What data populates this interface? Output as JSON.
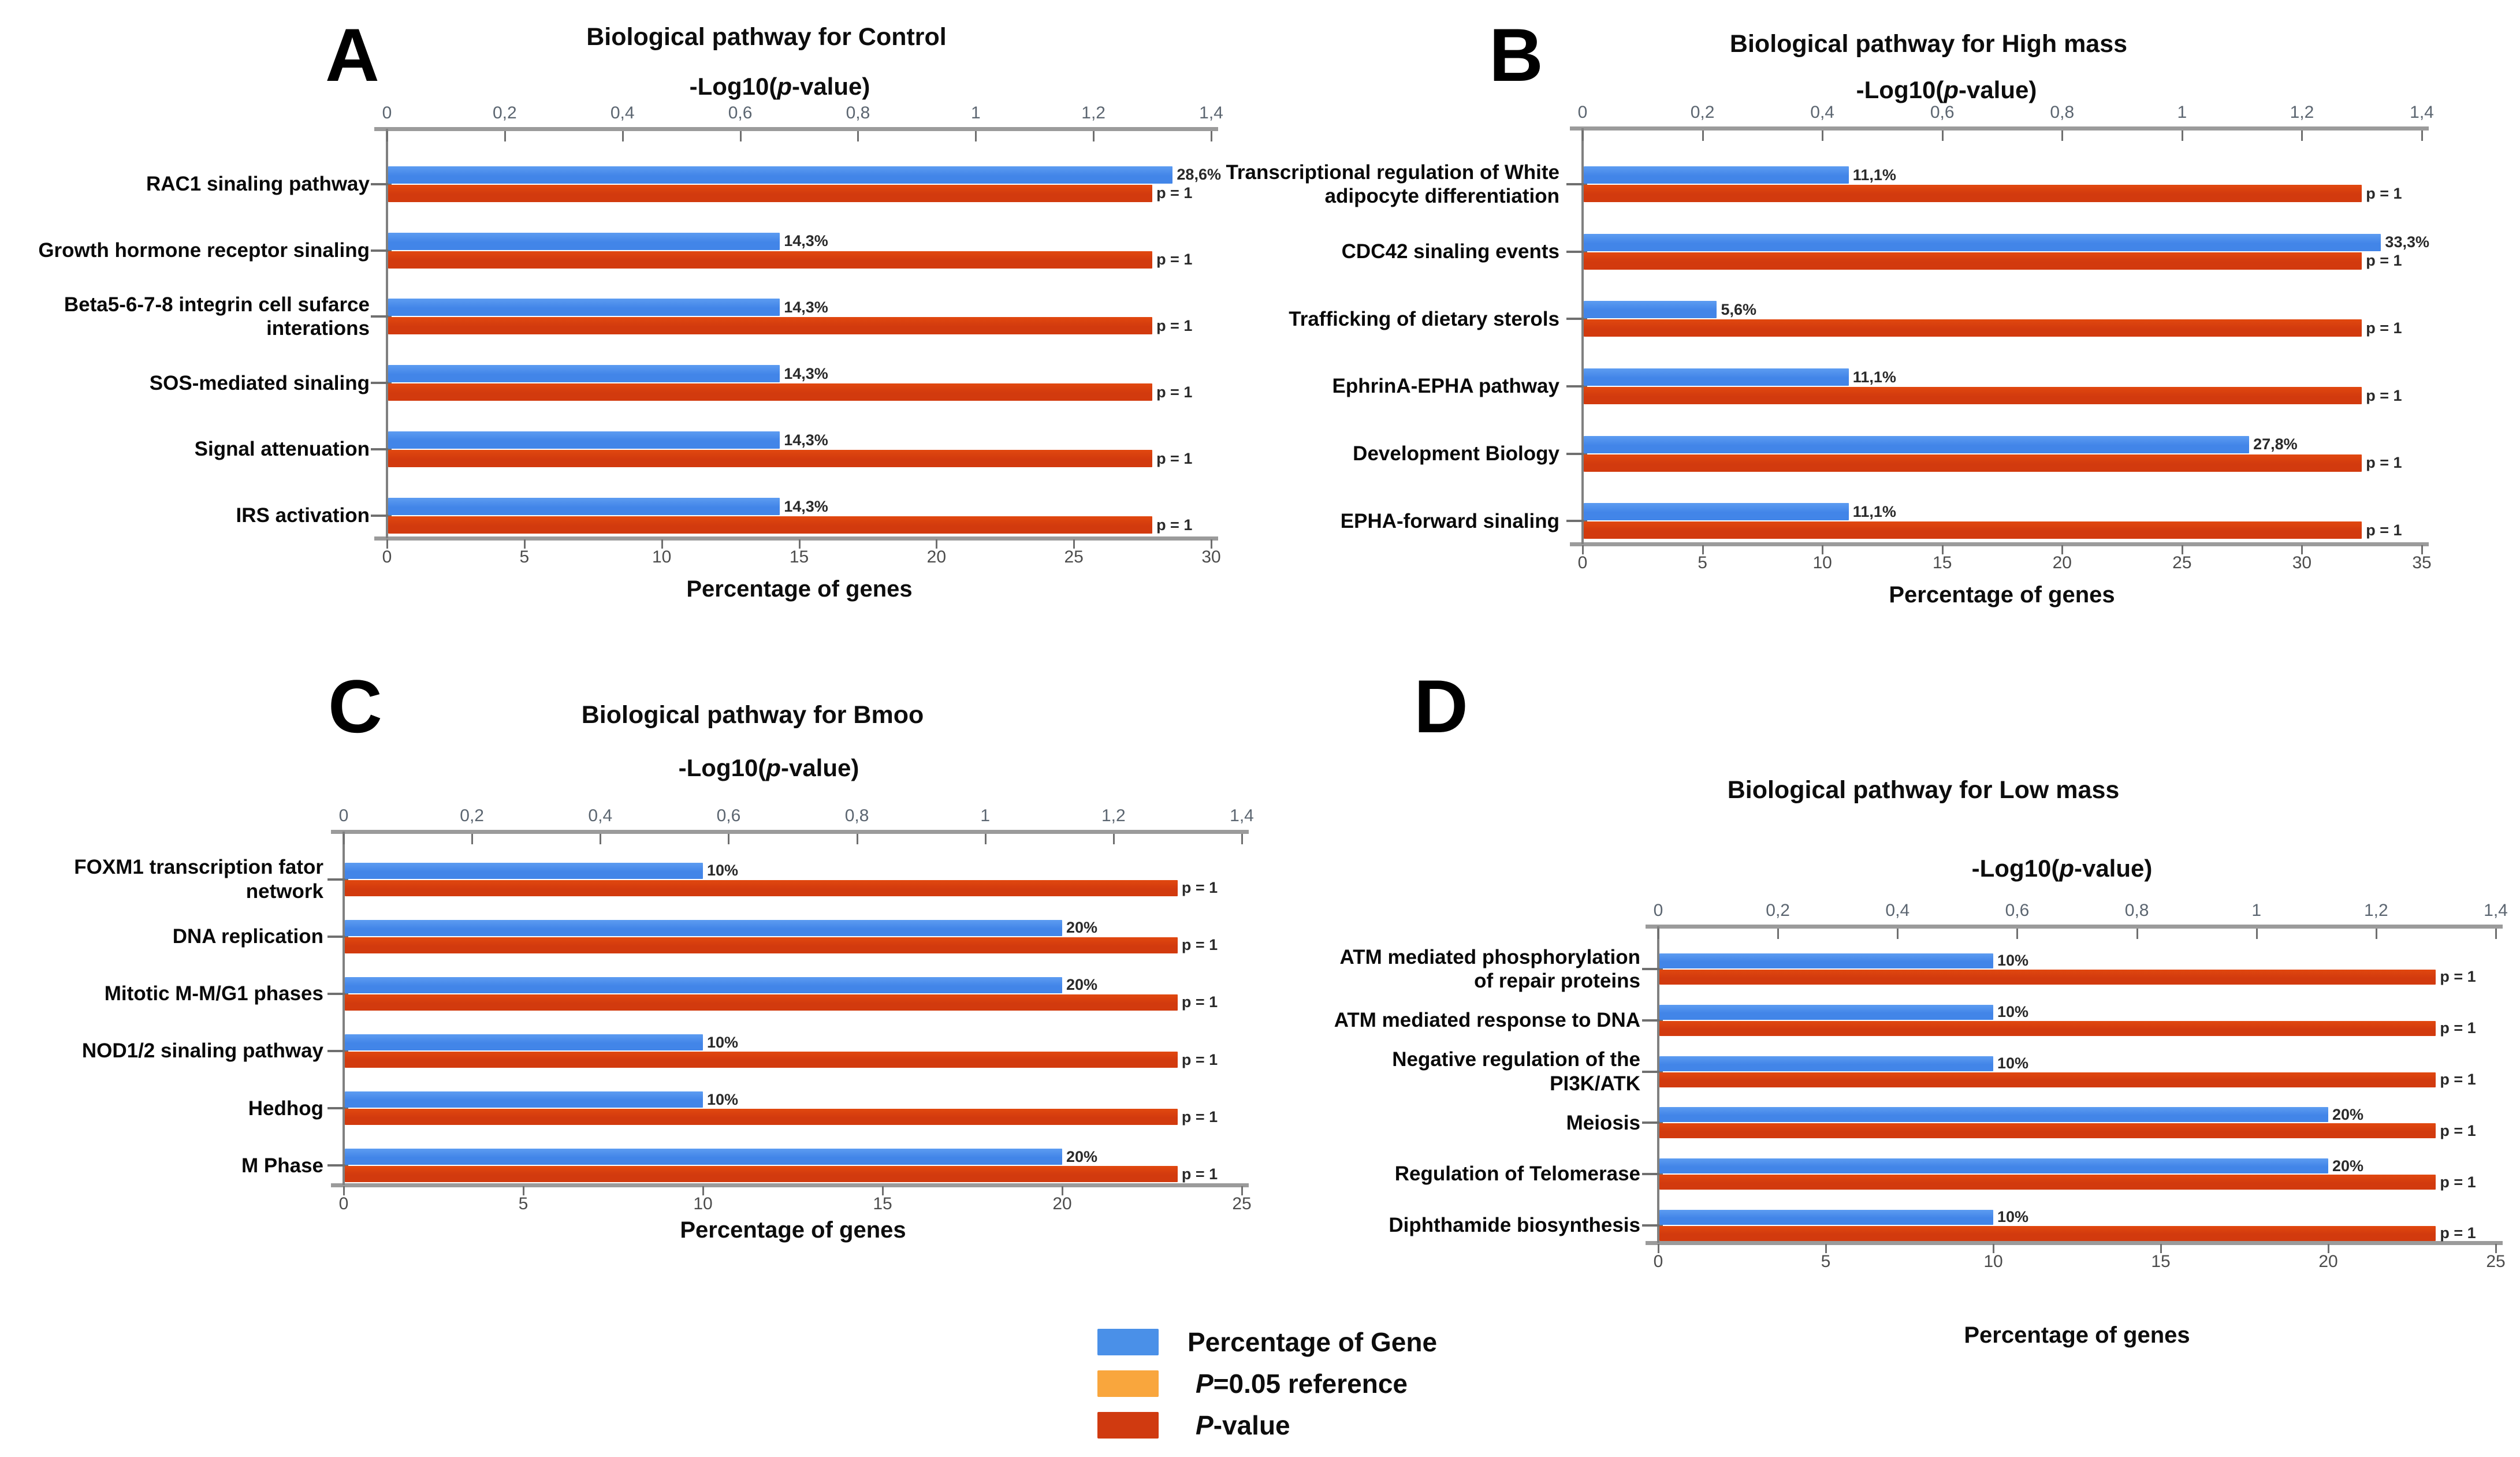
{
  "figure": {
    "background": "#ffffff"
  },
  "colors": {
    "gene_bar": "#4285e8",
    "gene_bar_light": "#5d9cf1",
    "pvalue_bar": "#d23a0e",
    "pvalue_bar_light": "#e1480f",
    "gene_swatch": "#4a90e8",
    "reference_swatch": "#f9a63d",
    "pvalue_swatch": "#d03a10",
    "axis_line": "#9b9b9b",
    "y_axis_line": "#808080",
    "tick_mark": "#6f6f6f",
    "top_tick_text": "#5b6570",
    "bottom_tick_text": "#4c4c4c",
    "value_text": "#2a2a2a"
  },
  "panels": [
    {
      "letter": "A",
      "title": "Biological pathway for Control",
      "subtitle": {
        "pre": "-Log10(",
        "it": "p",
        "post": "-value)"
      },
      "top_axis": {
        "max": 1.4,
        "ticks": [
          "0",
          "0,2",
          "0,4",
          "0,6",
          "0,8",
          "1",
          "1,2",
          "1,4"
        ]
      },
      "bottom_axis": {
        "max": 30,
        "ticks": [
          "0",
          "5",
          "10",
          "15",
          "20",
          "25",
          "30"
        ],
        "title": "Percentage of genes"
      },
      "pvalue_bar": {
        "neglog10": 1.3,
        "label": "p = 1"
      },
      "rows": [
        {
          "label": "RAC1 sinaling pathway",
          "pct": 28.6,
          "pct_label": "28,6%"
        },
        {
          "label": "Growth hormone receptor sinaling",
          "pct": 14.3,
          "pct_label": "14,3%"
        },
        {
          "label": "Beta5-6-7-8 integrin cell sufarce interations",
          "pct": 14.3,
          "pct_label": "14,3%"
        },
        {
          "label": "SOS-mediated sinaling",
          "pct": 14.3,
          "pct_label": "14,3%"
        },
        {
          "label": "Signal attenuation",
          "pct": 14.3,
          "pct_label": "14,3%"
        },
        {
          "label": "IRS activation",
          "pct": 14.3,
          "pct_label": "14,3%"
        }
      ]
    },
    {
      "letter": "B",
      "title": "Biological pathway for High mass",
      "subtitle": {
        "pre": "-Log10(",
        "it": "p",
        "post": "-value)"
      },
      "top_axis": {
        "max": 1.4,
        "ticks": [
          "0",
          "0,2",
          "0,4",
          "0,6",
          "0,8",
          "1",
          "1,2",
          "1,4"
        ]
      },
      "bottom_axis": {
        "max": 35,
        "ticks": [
          "0",
          "5",
          "10",
          "15",
          "20",
          "25",
          "30",
          "35"
        ],
        "title": "Percentage of genes"
      },
      "pvalue_bar": {
        "neglog10": 1.3,
        "label": "p = 1"
      },
      "rows": [
        {
          "label": "Transcriptional regulation of White adipocyte differentiation",
          "pct": 11.1,
          "pct_label": "11,1%"
        },
        {
          "label": "CDC42 sinaling events",
          "pct": 33.3,
          "pct_label": "33,3%"
        },
        {
          "label": "Trafficking of dietary sterols",
          "pct": 5.6,
          "pct_label": "5,6%"
        },
        {
          "label": "EphrinA-EPHA pathway",
          "pct": 11.1,
          "pct_label": "11,1%"
        },
        {
          "label": "Development Biology",
          "pct": 27.8,
          "pct_label": "27,8%"
        },
        {
          "label": "EPHA-forward sinaling",
          "pct": 11.1,
          "pct_label": "11,1%"
        }
      ]
    },
    {
      "letter": "C",
      "title": "Biological pathway for Bmoo",
      "subtitle": {
        "pre": "-Log10(",
        "it": "p",
        "post": "-value)"
      },
      "top_axis": {
        "max": 1.4,
        "ticks": [
          "0",
          "0,2",
          "0,4",
          "0,6",
          "0,8",
          "1",
          "1,2",
          "1,4"
        ]
      },
      "bottom_axis": {
        "max": 25,
        "ticks": [
          "0",
          "5",
          "10",
          "15",
          "20",
          "25"
        ],
        "title": "Percentage of genes"
      },
      "pvalue_bar": {
        "neglog10": 1.3,
        "label": "p = 1"
      },
      "rows": [
        {
          "label": "FOXM1 transcription fator network",
          "pct": 10,
          "pct_label": "10%"
        },
        {
          "label": "DNA replication",
          "pct": 20,
          "pct_label": "20%"
        },
        {
          "label": "Mitotic M-M/G1 phases",
          "pct": 20,
          "pct_label": "20%"
        },
        {
          "label": "NOD1/2 sinaling pathway",
          "pct": 10,
          "pct_label": "10%"
        },
        {
          "label": "Hedhog",
          "pct": 10,
          "pct_label": "10%"
        },
        {
          "label": "M Phase",
          "pct": 20,
          "pct_label": "20%"
        }
      ]
    },
    {
      "letter": "D",
      "title": "Biological pathway for Low mass",
      "subtitle": {
        "pre": "-Log10(",
        "it": "p",
        "post": "-value)"
      },
      "top_axis": {
        "max": 1.4,
        "ticks": [
          "0",
          "0,2",
          "0,4",
          "0,6",
          "0,8",
          "1",
          "1,2",
          "1,4"
        ]
      },
      "bottom_axis": {
        "max": 25,
        "ticks": [
          "0",
          "5",
          "10",
          "15",
          "20",
          "25"
        ],
        "title": "Percentage of genes"
      },
      "pvalue_bar": {
        "neglog10": 1.3,
        "label": "p = 1"
      },
      "rows": [
        {
          "label": "ATM mediated phosphorylation of repair proteins",
          "pct": 10,
          "pct_label": "10%"
        },
        {
          "label": "ATM mediated response to DNA",
          "pct": 10,
          "pct_label": "10%"
        },
        {
          "label": "Negative regulation of the PI3K/ATK",
          "pct": 10,
          "pct_label": "10%"
        },
        {
          "label": "Meiosis",
          "pct": 20,
          "pct_label": "20%"
        },
        {
          "label": "Regulation of Telomerase",
          "pct": 20,
          "pct_label": "20%"
        },
        {
          "label": "Diphthamide biosynthesis",
          "pct": 10,
          "pct_label": "10%"
        }
      ]
    }
  ],
  "legend": {
    "items": [
      {
        "swatch": "#4a90e8",
        "lead": "",
        "text": "Percentage of Gene"
      },
      {
        "swatch": "#f9a63d",
        "lead": "P",
        "text": "=0.05 reference"
      },
      {
        "swatch": "#d03a10",
        "lead": "P",
        "text": "-value"
      }
    ]
  },
  "chart_data": [
    {
      "type": "bar",
      "orientation": "horizontal",
      "title": "Biological pathway for Control",
      "top_axis_label": "-Log10(p-value)",
      "top_axis_range": [
        0,
        1.4
      ],
      "bottom_axis_label": "Percentage of genes",
      "bottom_axis_range": [
        0,
        30
      ],
      "categories": [
        "RAC1 sinaling pathway",
        "Growth hormone receptor sinaling",
        "Beta5-6-7-8 integrin cell sufarce interations",
        "SOS-mediated sinaling",
        "Signal attenuation",
        "IRS activation"
      ],
      "series": [
        {
          "name": "Percentage of Gene",
          "axis": "bottom",
          "unit": "%",
          "values": [
            28.6,
            14.3,
            14.3,
            14.3,
            14.3,
            14.3
          ]
        },
        {
          "name": "P-value",
          "axis": "top",
          "p_values": [
            1,
            1,
            1,
            1,
            1,
            1
          ],
          "drawn_neglog10": [
            1.3,
            1.3,
            1.3,
            1.3,
            1.3,
            1.3
          ]
        }
      ],
      "legend_position": "bottom",
      "grid": false
    },
    {
      "type": "bar",
      "orientation": "horizontal",
      "title": "Biological pathway for High mass",
      "top_axis_label": "-Log10(p-value)",
      "top_axis_range": [
        0,
        1.4
      ],
      "bottom_axis_label": "Percentage of genes",
      "bottom_axis_range": [
        0,
        35
      ],
      "categories": [
        "Transcriptional regulation of White adipocyte differentiation",
        "CDC42 sinaling events",
        "Trafficking of dietary sterols",
        "EphrinA-EPHA pathway",
        "Development Biology",
        "EPHA-forward sinaling"
      ],
      "series": [
        {
          "name": "Percentage of Gene",
          "axis": "bottom",
          "unit": "%",
          "values": [
            11.1,
            33.3,
            5.6,
            11.1,
            27.8,
            11.1
          ]
        },
        {
          "name": "P-value",
          "axis": "top",
          "p_values": [
            1,
            1,
            1,
            1,
            1,
            1
          ],
          "drawn_neglog10": [
            1.3,
            1.3,
            1.3,
            1.3,
            1.3,
            1.3
          ]
        }
      ],
      "legend_position": "bottom",
      "grid": false
    },
    {
      "type": "bar",
      "orientation": "horizontal",
      "title": "Biological pathway for Bmoo",
      "top_axis_label": "-Log10(p-value)",
      "top_axis_range": [
        0,
        1.4
      ],
      "bottom_axis_label": "Percentage of genes",
      "bottom_axis_range": [
        0,
        25
      ],
      "categories": [
        "FOXM1 transcription fator network",
        "DNA replication",
        "Mitotic M-M/G1 phases",
        "NOD1/2 sinaling pathway",
        "Hedhog",
        "M Phase"
      ],
      "series": [
        {
          "name": "Percentage of Gene",
          "axis": "bottom",
          "unit": "%",
          "values": [
            10,
            20,
            20,
            10,
            10,
            20
          ]
        },
        {
          "name": "P-value",
          "axis": "top",
          "p_values": [
            1,
            1,
            1,
            1,
            1,
            1
          ],
          "drawn_neglog10": [
            1.3,
            1.3,
            1.3,
            1.3,
            1.3,
            1.3
          ]
        }
      ],
      "legend_position": "bottom",
      "grid": false
    },
    {
      "type": "bar",
      "orientation": "horizontal",
      "title": "Biological pathway for Low mass",
      "top_axis_label": "-Log10(p-value)",
      "top_axis_range": [
        0,
        1.4
      ],
      "bottom_axis_label": "Percentage of genes",
      "bottom_axis_range": [
        0,
        25
      ],
      "categories": [
        "ATM mediated phosphorylation of repair proteins",
        "ATM mediated response to DNA",
        "Negative regulation of the PI3K/ATK",
        "Meiosis",
        "Regulation of Telomerase",
        "Diphthamide biosynthesis"
      ],
      "series": [
        {
          "name": "Percentage of Gene",
          "axis": "bottom",
          "unit": "%",
          "values": [
            10,
            10,
            10,
            20,
            20,
            10
          ]
        },
        {
          "name": "P-value",
          "axis": "top",
          "p_values": [
            1,
            1,
            1,
            1,
            1,
            1
          ],
          "drawn_neglog10": [
            1.3,
            1.3,
            1.3,
            1.3,
            1.3,
            1.3
          ]
        }
      ],
      "legend_position": "bottom",
      "grid": false
    }
  ]
}
